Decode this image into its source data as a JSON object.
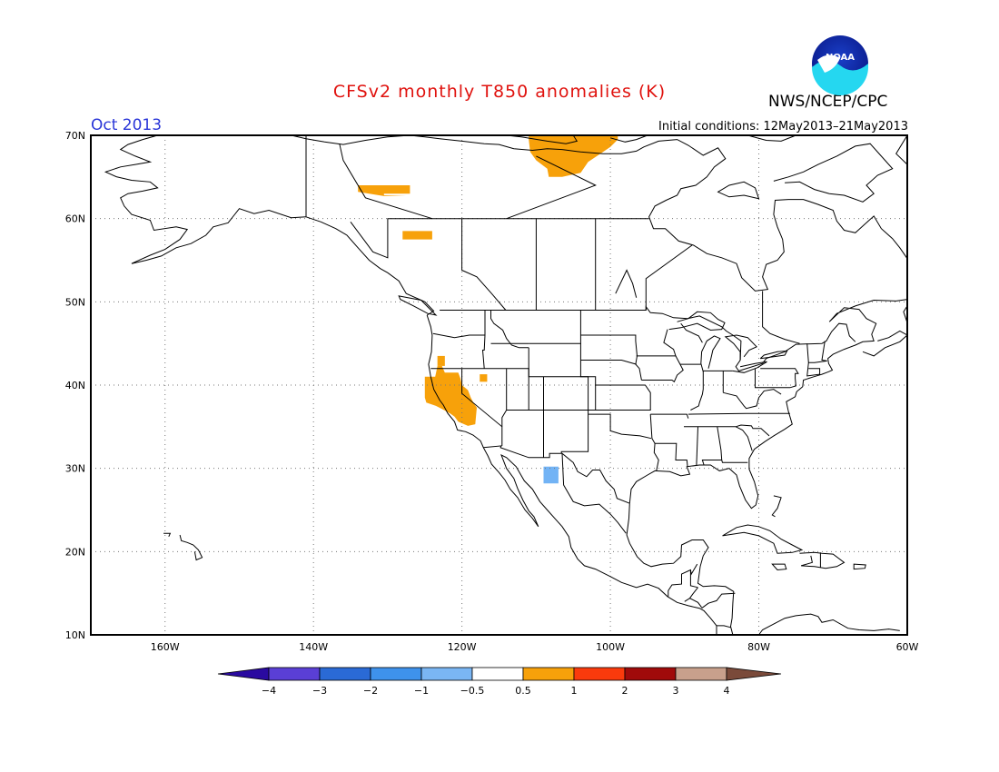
{
  "title": "CFSv2 monthly T850 anomalies (K)",
  "agency": "NWS/NCEP/CPC",
  "month": "Oct 2013",
  "initial_conditions": "Initial conditions: 12May2013–21May2013",
  "logo_text": "NOAA",
  "colors": {
    "title": "#e0120e",
    "month": "#2a36d8",
    "warm_anomaly": "#f7a10a",
    "cool_anomaly": "#72b3f5",
    "land_outline": "#000000"
  },
  "map": {
    "lon_range": [
      -170,
      -60
    ],
    "lat_range": [
      10,
      70
    ],
    "lat_labels": [
      "70N",
      "60N",
      "50N",
      "40N",
      "30N",
      "20N",
      "10N"
    ],
    "lat_values": [
      70,
      60,
      50,
      40,
      30,
      20,
      10
    ],
    "lon_labels": [
      "160W",
      "140W",
      "120W",
      "100W",
      "80W",
      "60W"
    ],
    "lon_values": [
      -160,
      -140,
      -120,
      -100,
      -80,
      -60
    ],
    "grid": "dotted"
  },
  "anomalies": [
    {
      "category": "0.5 to 1",
      "region": "California / Nevada",
      "lon": [
        -125,
        -118
      ],
      "lat": [
        35,
        41
      ],
      "color": "#f7a10a"
    },
    {
      "category": "0.5 to 1",
      "region": "Canadian Arctic coast",
      "lon": [
        -111,
        -99
      ],
      "lat": [
        65,
        70
      ],
      "color": "#f7a10a"
    },
    {
      "category": "0.5 to 1",
      "region": "Yukon",
      "lon": [
        -134,
        -127
      ],
      "lat": [
        63,
        64
      ],
      "color": "#f7a10a"
    },
    {
      "category": "0.5 to 1",
      "region": "British Columbia",
      "lon": [
        -128,
        -124
      ],
      "lat": [
        57.5,
        58.5
      ],
      "color": "#f7a10a"
    },
    {
      "category": "-1 to -0.5",
      "region": "Northern Mexico",
      "lon": [
        -109,
        -107
      ],
      "lat": [
        28.2,
        30.2
      ],
      "color": "#72b3f5"
    }
  ],
  "colorbar": {
    "tick_labels": [
      "−4",
      "−3",
      "−2",
      "−1",
      "−0.5",
      "0.5",
      "1",
      "2",
      "3",
      "4"
    ],
    "colors": [
      "#2a0aa0",
      "#5a3fd5",
      "#2a6ad6",
      "#3e92ec",
      "#7ab6f4",
      "#ffffff",
      "#f7a10a",
      "#fa3a0c",
      "#a00a0a",
      "#c8a08c",
      "#7a4a3a"
    ]
  }
}
